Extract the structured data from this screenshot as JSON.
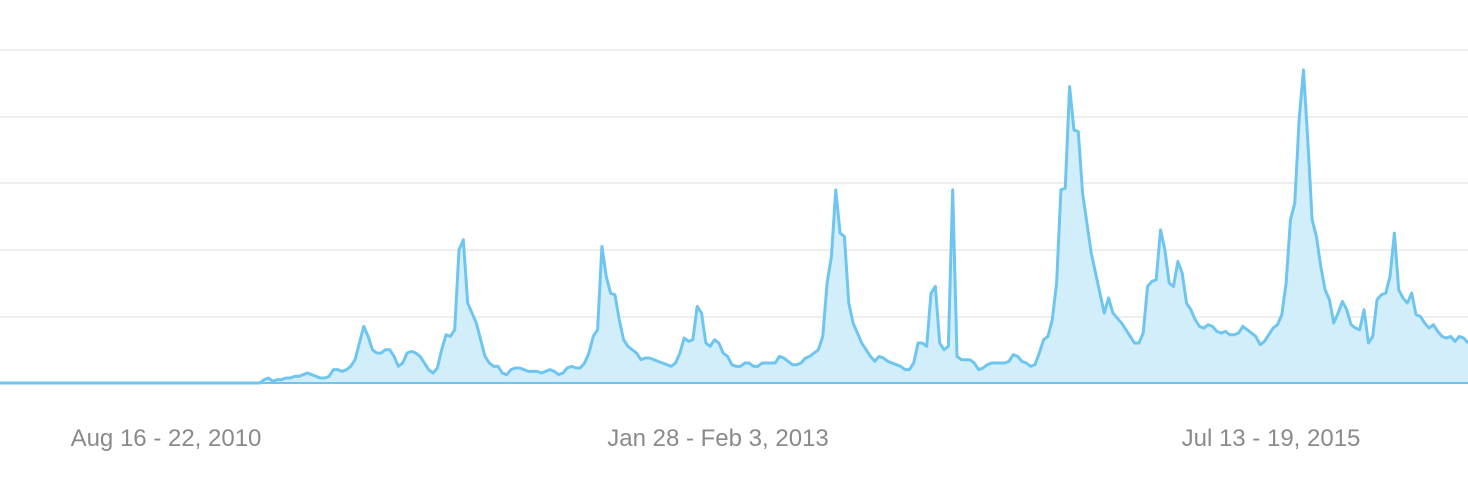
{
  "chart_data": {
    "type": "area",
    "title": "",
    "xlabel": "",
    "ylabel": "",
    "grid": true,
    "ylim": [
      0,
      100
    ],
    "x_tick_labels": [
      "Aug 16 - 22, 2010",
      "Jan 28 - Feb 3, 2013",
      "Jul 13 - 19, 2015"
    ],
    "x_tick_indices": [
      3,
      133,
      263
    ],
    "colors": {
      "line": "#6ec6f0",
      "fill": "#d3eefb",
      "grid": "#e9e9e9",
      "baseline": "#6ec6f0",
      "tick_text": "#8a8a8a"
    },
    "series": [
      {
        "values": [
          0,
          0,
          0,
          0,
          0,
          0,
          0,
          0,
          0,
          0,
          0,
          0,
          0,
          0,
          0,
          0,
          0,
          0,
          0,
          0,
          0,
          0,
          0,
          0,
          0,
          0,
          0,
          0,
          0,
          0,
          0,
          0,
          0,
          0,
          0,
          0,
          0,
          0,
          0,
          0,
          0,
          0,
          0,
          0,
          0,
          0,
          0,
          0,
          0,
          0,
          0,
          0,
          0,
          0,
          0,
          0,
          0,
          0,
          0,
          0,
          0,
          1,
          1.5,
          0.5,
          1,
          1,
          1.5,
          1.5,
          2,
          2,
          2.5,
          3,
          2.5,
          2,
          1.5,
          1.5,
          2,
          4,
          4,
          3.5,
          4,
          5,
          7,
          12,
          17,
          14,
          10,
          9,
          9,
          10,
          10,
          8,
          5,
          6,
          9,
          9.5,
          9,
          8,
          6,
          4,
          3,
          4.5,
          10,
          14.5,
          14,
          16,
          40,
          43,
          24,
          21,
          18,
          13,
          8,
          6,
          5,
          5,
          3,
          2.5,
          4,
          4.5,
          4.5,
          4,
          3.5,
          3.5,
          3.5,
          3,
          3.5,
          4,
          3.5,
          2.5,
          3,
          4.5,
          5,
          4.5,
          4.5,
          6,
          9,
          14,
          16,
          41,
          32,
          27,
          26.5,
          19,
          13,
          11,
          10,
          9,
          7,
          7.5,
          7.5,
          7,
          6.5,
          6,
          5.5,
          5,
          6,
          9,
          13.5,
          12.5,
          13,
          23,
          21,
          12,
          11,
          13,
          12,
          9,
          8,
          5.5,
          5,
          5,
          6,
          6,
          5,
          5,
          6,
          6,
          6,
          6,
          8,
          7.5,
          6.5,
          5.5,
          5.5,
          6,
          7.5,
          8,
          9,
          10,
          14,
          30,
          38,
          58,
          45,
          44,
          24,
          18,
          15,
          12,
          10,
          8,
          6.5,
          8,
          7.5,
          6.5,
          6,
          5.5,
          5,
          4,
          4,
          6,
          12,
          12,
          11,
          27,
          29,
          12,
          10,
          11,
          58,
          8,
          7,
          7,
          7,
          6,
          4,
          4.5,
          5.5,
          6,
          6,
          6,
          6,
          6.5,
          8.5,
          8,
          6.5,
          6,
          5,
          5.5,
          9,
          13,
          14,
          19,
          30,
          58,
          58.5,
          89,
          76,
          75.5,
          57,
          48,
          39,
          33,
          27,
          21,
          25.5,
          21,
          19.5,
          18,
          16,
          14,
          12,
          12,
          15,
          29,
          30.5,
          31,
          46,
          40,
          30,
          29,
          36.5,
          33,
          24,
          22,
          19,
          17,
          16.5,
          17.5,
          17,
          15.5,
          15,
          15.5,
          14.5,
          14.5,
          15,
          17,
          16,
          15,
          14,
          11.5,
          12.5,
          14.5,
          16.5,
          17.5,
          20.5,
          30,
          49,
          54,
          79,
          94,
          73,
          49,
          44,
          35,
          28,
          25,
          18,
          21,
          24.5,
          22,
          17.5,
          16.5,
          16,
          22,
          12,
          14,
          25,
          26.5,
          27,
          32,
          45,
          28,
          25.5,
          24,
          27,
          20.5,
          20,
          18,
          16.5,
          17.5,
          15.5,
          14,
          13.5,
          14,
          12.5,
          14,
          13.5,
          12
        ]
      }
    ]
  }
}
